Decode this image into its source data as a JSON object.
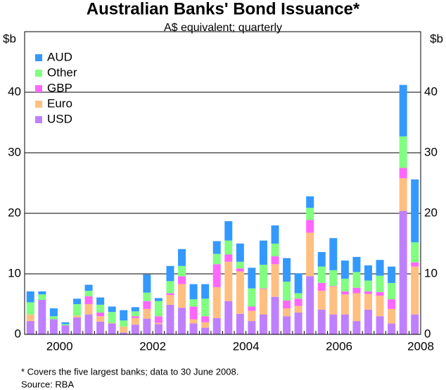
{
  "chart_data": {
    "type": "stacked_bar",
    "title": "Australian Banks' Bond Issuance*",
    "subtitle": "A$ equivalent; quarterly",
    "ylabel": "$b",
    "footnote": "*   Covers the five largest banks; data to 30 June 2008.",
    "source": "Source: RBA",
    "categories": [
      null,
      null,
      "2000",
      null,
      null,
      null,
      null,
      null,
      null,
      null,
      "2002",
      null,
      null,
      null,
      null,
      null,
      null,
      null,
      "2004",
      null,
      null,
      null,
      null,
      null,
      null,
      null,
      "2006",
      null,
      null,
      null,
      null,
      null,
      null,
      "2008"
    ],
    "series": [
      {
        "name": "USD",
        "color": "#bf80ff",
        "values": [
          2.2,
          5.7,
          2.5,
          1.5,
          2.8,
          3.3,
          2.1,
          1.8,
          0.3,
          1.6,
          2.6,
          1.7,
          4.9,
          4.4,
          1.8,
          1.1,
          2.7,
          5.5,
          3.4,
          2.2,
          3.3,
          6.2,
          3.0,
          3.6,
          9.6,
          4.1,
          3.3,
          3.3,
          2.2,
          4.1,
          3.0,
          1.8,
          20.4,
          3.3
        ]
      },
      {
        "name": "Euro",
        "color": "#ffbf80",
        "values": [
          1.1,
          0,
          0,
          0,
          0.3,
          1.7,
          0.9,
          0.1,
          1.0,
          1.1,
          1.6,
          0.2,
          1.6,
          3.9,
          0.7,
          0.9,
          5.1,
          6.5,
          7.0,
          1.7,
          4.2,
          5.4,
          1.3,
          1.1,
          7.2,
          3.1,
          4.6,
          3.3,
          4.6,
          2.6,
          3.4,
          2.4,
          5.4,
          7.9
        ]
      },
      {
        "name": "GBP",
        "color": "#ff66ff",
        "values": [
          0,
          0,
          0,
          0,
          0,
          1.3,
          0.6,
          0,
          0,
          0.3,
          1.3,
          1.1,
          0.3,
          1.3,
          2.1,
          1.0,
          3.8,
          1.2,
          0.5,
          0.7,
          0.1,
          1.3,
          1.3,
          1.2,
          2.1,
          1.3,
          0.1,
          0.5,
          0.9,
          0.4,
          0.6,
          1.6,
          1.7,
          0.7
        ]
      },
      {
        "name": "Other",
        "color": "#80ff80",
        "values": [
          2.0,
          0.9,
          0.5,
          0.2,
          1.9,
          0.9,
          1.3,
          1.8,
          1.0,
          0.8,
          1.4,
          2.5,
          2.0,
          1.7,
          1.2,
          2.9,
          1.7,
          2.3,
          1.1,
          3.0,
          3.9,
          2.1,
          3.1,
          0.9,
          2.0,
          2.7,
          2.6,
          2.1,
          2.6,
          1.8,
          2.7,
          2.7,
          5.2,
          3.3
        ]
      },
      {
        "name": "AUD",
        "color": "#3399ff",
        "values": [
          1.8,
          0.5,
          1.3,
          0.3,
          0.9,
          1.0,
          1.2,
          0.9,
          1.7,
          0.7,
          3.0,
          0.5,
          2.5,
          2.8,
          2.5,
          2.4,
          2.1,
          3.2,
          3.0,
          3.4,
          4.0,
          3.0,
          3.9,
          3.3,
          1.9,
          2.4,
          5.3,
          3.0,
          2.5,
          2.5,
          2.6,
          2.7,
          8.5,
          10.4
        ]
      }
    ],
    "ylim": [
      0,
      50
    ],
    "yticks": [
      0,
      10,
      20,
      30,
      40
    ],
    "grid": true
  }
}
